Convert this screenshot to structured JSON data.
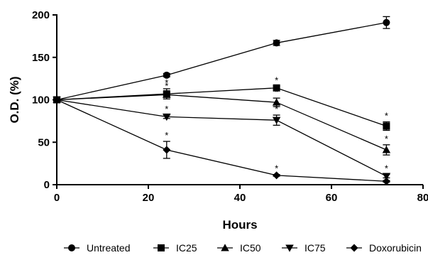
{
  "chart_data": {
    "type": "line",
    "xlabel": "Hours",
    "ylabel": "O.D. (%)",
    "xlim": [
      0,
      80
    ],
    "ylim": [
      0,
      200
    ],
    "xticks": [
      0,
      20,
      40,
      60,
      80
    ],
    "yticks": [
      0,
      50,
      100,
      150,
      200
    ],
    "grid": false,
    "legend_position": "bottom",
    "x": [
      0,
      24,
      48,
      72
    ],
    "significance_marker": "*",
    "series": [
      {
        "name": "Untreated",
        "marker": "circle",
        "values": [
          100,
          129,
          167,
          191
        ],
        "errors": [
          0,
          2,
          3,
          7
        ],
        "significant": [
          false,
          false,
          false,
          false
        ]
      },
      {
        "name": "IC25",
        "marker": "square",
        "values": [
          100,
          107,
          114,
          69
        ],
        "errors": [
          0,
          6,
          2,
          5
        ],
        "significant": [
          false,
          true,
          true,
          true
        ]
      },
      {
        "name": "IC50",
        "marker": "triangle-up",
        "values": [
          100,
          106,
          97,
          41
        ],
        "errors": [
          0,
          3,
          5,
          6
        ],
        "significant": [
          false,
          true,
          true,
          true
        ]
      },
      {
        "name": "IC75",
        "marker": "triangle-down",
        "values": [
          100,
          80,
          76,
          10
        ],
        "errors": [
          0,
          2,
          6,
          2
        ],
        "significant": [
          false,
          true,
          true,
          true
        ]
      },
      {
        "name": "Doxorubicin",
        "marker": "diamond",
        "values": [
          100,
          41,
          11,
          4
        ],
        "errors": [
          0,
          10,
          1,
          1
        ],
        "significant": [
          false,
          true,
          true,
          false
        ]
      }
    ]
  }
}
